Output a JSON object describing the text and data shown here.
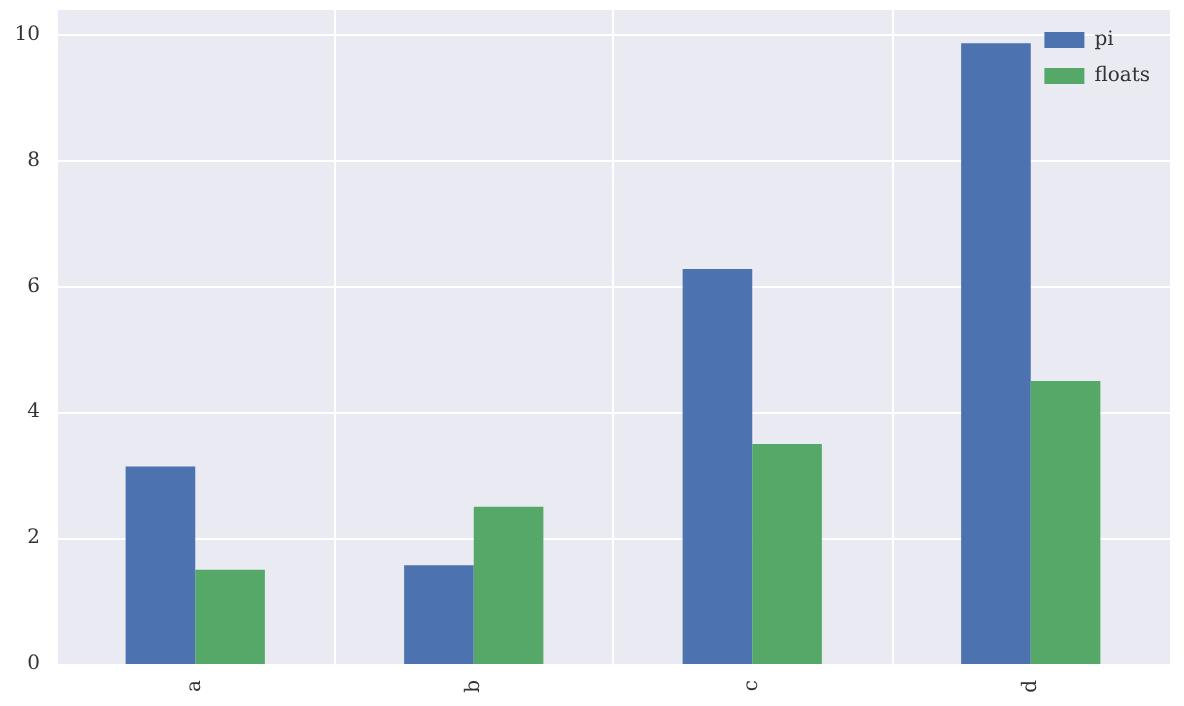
{
  "chart_data": {
    "type": "bar",
    "categories": [
      "a",
      "b",
      "c",
      "d"
    ],
    "series": [
      {
        "name": "pi",
        "color": "#4c72b0",
        "values": [
          3.14,
          1.57,
          6.28,
          9.87
        ]
      },
      {
        "name": "floats",
        "color": "#55a868",
        "values": [
          1.5,
          2.5,
          3.5,
          4.5
        ]
      }
    ],
    "ylim": [
      0,
      10.4
    ],
    "yticks": [
      0,
      2,
      4,
      6,
      8,
      10
    ],
    "grid": true,
    "legend": "top right"
  }
}
